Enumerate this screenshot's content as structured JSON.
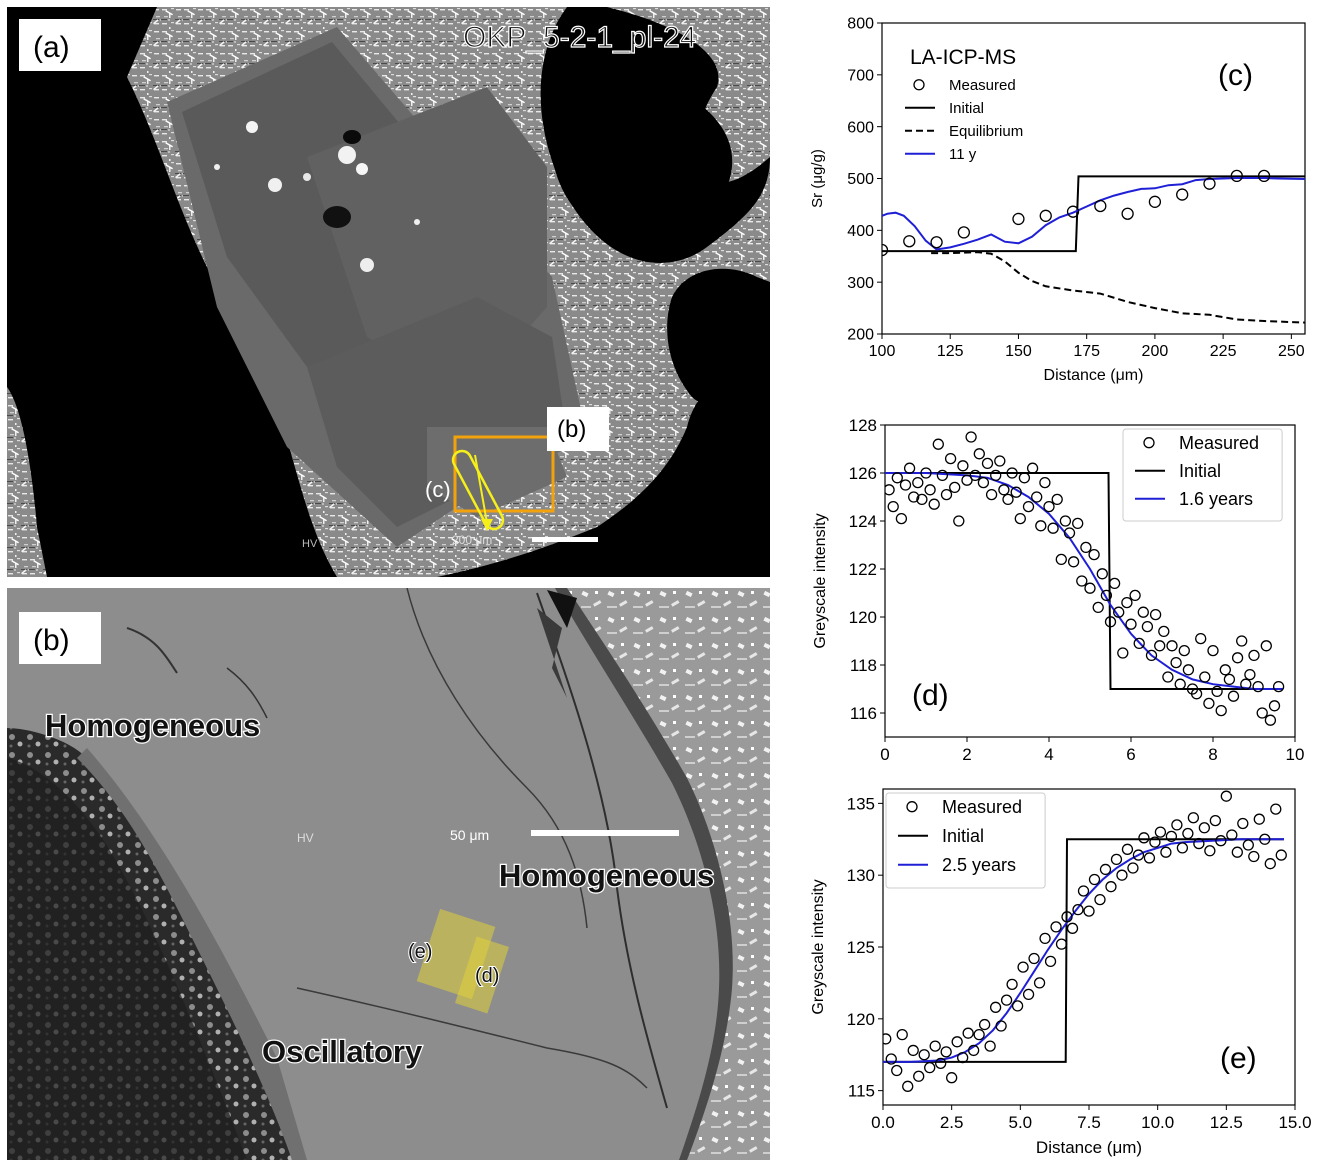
{
  "panel_a": {
    "label": "(a)",
    "sample_id": "OKP_5-2-1_pl-24",
    "box_label": "(b)",
    "profile_label": "(c)",
    "scalebar_text": "200 μm",
    "corner_text": "HV",
    "box_color": "#f2a20c",
    "profile_color": "#f5ef1a"
  },
  "panel_b": {
    "label": "(b)",
    "zone_labels": [
      "Homogeneous",
      "Homogeneous",
      "Oscillatory"
    ],
    "profile_labels": [
      "(e)",
      "(d)"
    ],
    "scalebar_text": "50 μm",
    "corner_text": "HV",
    "highlight_color": "#e0d23a"
  },
  "chart_data": [
    {
      "id": "c",
      "type": "line",
      "panel_label": "(c)",
      "inset_title": "LA-ICP-MS",
      "xlabel": "Distance (μm)",
      "ylabel": "Sr (μg/g)",
      "xlim": [
        100,
        255
      ],
      "ylim": [
        200,
        800
      ],
      "xticks": [
        100,
        125,
        150,
        175,
        200,
        225,
        250
      ],
      "yticks": [
        200,
        300,
        400,
        500,
        600,
        700,
        800
      ],
      "legend_position": "upper-left",
      "series": [
        {
          "name": "Measured",
          "kind": "scatter",
          "x": [
            100,
            110,
            120,
            130,
            150,
            160,
            170,
            180,
            190,
            200,
            210,
            220,
            230,
            240
          ],
          "y": [
            362,
            379,
            377,
            396,
            422,
            428,
            436,
            447,
            432,
            455,
            469,
            490,
            505,
            505
          ]
        },
        {
          "name": "Initial",
          "kind": "line",
          "color": "#000000",
          "dash": "solid",
          "x": [
            100,
            171,
            171,
            172,
            173,
            174,
            255
          ],
          "y": [
            360,
            360,
            360,
            504,
            504,
            504,
            504
          ]
        },
        {
          "name": "Equilibrium",
          "kind": "line",
          "color": "#000000",
          "dash": "dashed",
          "x": [
            118,
            125,
            135,
            140,
            145,
            150,
            155,
            160,
            170,
            180,
            190,
            200,
            210,
            220,
            230,
            240,
            255
          ],
          "y": [
            356,
            356,
            358,
            355,
            340,
            318,
            302,
            292,
            284,
            278,
            262,
            250,
            240,
            237,
            228,
            225,
            222
          ]
        },
        {
          "name": "11 y",
          "kind": "line",
          "color": "#1f1fd6",
          "dash": "solid",
          "x": [
            100,
            102,
            105,
            108,
            112,
            116,
            120,
            125,
            130,
            135,
            140,
            145,
            150,
            155,
            160,
            165,
            170,
            175,
            180,
            185,
            190,
            195,
            200,
            205,
            210,
            215,
            220,
            225,
            230,
            235,
            240,
            245,
            255
          ],
          "y": [
            428,
            432,
            434,
            428,
            408,
            380,
            363,
            367,
            374,
            382,
            392,
            378,
            375,
            388,
            410,
            425,
            434,
            446,
            458,
            467,
            474,
            480,
            481,
            487,
            489,
            497,
            499,
            500,
            501,
            501,
            501,
            500,
            499
          ]
        }
      ]
    },
    {
      "id": "d",
      "type": "line",
      "panel_label": "(d)",
      "xlabel": "",
      "ylabel": "Greyscale intensity",
      "xlim": [
        0,
        10
      ],
      "ylim": [
        115,
        128
      ],
      "xticks": [
        0,
        2,
        4,
        6,
        8,
        10
      ],
      "yticks": [
        116,
        118,
        120,
        122,
        124,
        126,
        128
      ],
      "legend_position": "upper-right",
      "series": [
        {
          "name": "Measured",
          "kind": "scatter",
          "x": [
            0.1,
            0.2,
            0.3,
            0.4,
            0.5,
            0.6,
            0.7,
            0.8,
            0.9,
            1.0,
            1.1,
            1.2,
            1.3,
            1.4,
            1.5,
            1.6,
            1.7,
            1.8,
            1.9,
            2.0,
            2.1,
            2.2,
            2.3,
            2.4,
            2.5,
            2.6,
            2.7,
            2.8,
            2.9,
            3.0,
            3.1,
            3.2,
            3.3,
            3.4,
            3.5,
            3.6,
            3.7,
            3.8,
            3.9,
            4.0,
            4.1,
            4.2,
            4.3,
            4.4,
            4.5,
            4.6,
            4.7,
            4.8,
            4.9,
            5.0,
            5.1,
            5.2,
            5.3,
            5.4,
            5.5,
            5.6,
            5.7,
            5.8,
            5.9,
            6.0,
            6.1,
            6.2,
            6.3,
            6.4,
            6.5,
            6.6,
            6.7,
            6.8,
            6.9,
            7.0,
            7.1,
            7.2,
            7.3,
            7.4,
            7.5,
            7.6,
            7.7,
            7.8,
            7.9,
            8.0,
            8.1,
            8.2,
            8.3,
            8.4,
            8.5,
            8.6,
            8.7,
            8.8,
            8.9,
            9.0,
            9.1,
            9.2,
            9.3,
            9.4,
            9.5,
            9.6
          ],
          "y": [
            125.3,
            124.6,
            125.8,
            124.1,
            125.5,
            126.2,
            125.0,
            125.6,
            124.9,
            126.0,
            125.3,
            124.7,
            127.2,
            125.9,
            125.1,
            126.6,
            125.4,
            124.0,
            126.3,
            125.7,
            127.5,
            125.9,
            126.8,
            125.6,
            126.4,
            125.1,
            125.9,
            126.5,
            125.3,
            124.9,
            126.0,
            125.2,
            124.1,
            125.8,
            124.6,
            126.2,
            125.0,
            123.8,
            125.6,
            124.6,
            123.7,
            124.9,
            122.4,
            124.0,
            123.5,
            122.3,
            123.9,
            121.5,
            122.9,
            121.2,
            122.6,
            120.4,
            121.8,
            120.9,
            119.8,
            121.4,
            120.2,
            118.5,
            120.6,
            119.7,
            120.9,
            118.9,
            120.2,
            119.6,
            118.4,
            120.1,
            118.8,
            119.4,
            117.5,
            118.8,
            118.1,
            117.2,
            118.6,
            117.8,
            117.0,
            116.8,
            119.1,
            117.5,
            116.4,
            118.6,
            116.9,
            116.1,
            117.8,
            117.4,
            116.7,
            118.3,
            119.0,
            117.2,
            117.6,
            118.4,
            117.1,
            116.0,
            118.8,
            115.7,
            116.3,
            117.1
          ]
        },
        {
          "name": "Initial",
          "kind": "line",
          "color": "#000000",
          "dash": "solid",
          "x": [
            0,
            5.45,
            5.45,
            5.5,
            9.7
          ],
          "y": [
            126,
            126,
            126,
            117,
            117
          ]
        },
        {
          "name": "1.6 years",
          "kind": "line",
          "color": "#1f1fd6",
          "dash": "solid",
          "x": [
            0,
            1,
            2,
            2.5,
            3,
            3.5,
            4,
            4.5,
            5,
            5.5,
            6,
            6.5,
            7,
            7.5,
            8,
            8.5,
            9,
            9.7
          ],
          "y": [
            126.0,
            126.0,
            125.9,
            125.8,
            125.5,
            125.0,
            124.3,
            123.3,
            122.0,
            120.5,
            119.3,
            118.4,
            117.8,
            117.4,
            117.2,
            117.1,
            117.0,
            117.0
          ]
        }
      ]
    },
    {
      "id": "e",
      "type": "line",
      "panel_label": "(e)",
      "xlabel": "Distance (μm)",
      "ylabel": "Greyscale intensity",
      "xlim": [
        0,
        15
      ],
      "ylim": [
        114,
        136
      ],
      "xticks": [
        0.0,
        2.5,
        5.0,
        7.5,
        10.0,
        12.5,
        15.0
      ],
      "yticks": [
        115,
        120,
        125,
        130,
        135
      ],
      "legend_position": "upper-left",
      "series": [
        {
          "name": "Measured",
          "kind": "scatter",
          "x": [
            0.1,
            0.3,
            0.5,
            0.7,
            0.9,
            1.1,
            1.3,
            1.5,
            1.7,
            1.9,
            2.1,
            2.3,
            2.5,
            2.7,
            2.9,
            3.1,
            3.3,
            3.5,
            3.7,
            3.9,
            4.1,
            4.3,
            4.5,
            4.7,
            4.9,
            5.1,
            5.3,
            5.5,
            5.7,
            5.9,
            6.1,
            6.3,
            6.5,
            6.7,
            6.9,
            7.1,
            7.3,
            7.5,
            7.7,
            7.9,
            8.1,
            8.3,
            8.5,
            8.7,
            8.9,
            9.1,
            9.3,
            9.5,
            9.7,
            9.9,
            10.1,
            10.3,
            10.5,
            10.7,
            10.9,
            11.1,
            11.3,
            11.5,
            11.7,
            11.9,
            12.1,
            12.3,
            12.5,
            12.7,
            12.9,
            13.1,
            13.3,
            13.5,
            13.7,
            13.9,
            14.1,
            14.3,
            14.5
          ],
          "y": [
            118.6,
            117.2,
            116.4,
            118.9,
            115.3,
            117.8,
            116.0,
            117.5,
            116.6,
            118.1,
            116.9,
            117.7,
            115.9,
            118.4,
            117.3,
            119.0,
            117.8,
            118.9,
            119.6,
            118.1,
            120.8,
            119.5,
            121.3,
            122.4,
            120.9,
            123.6,
            121.7,
            124.2,
            122.5,
            125.6,
            124.0,
            126.4,
            125.2,
            127.1,
            126.3,
            127.6,
            128.9,
            127.5,
            129.7,
            128.3,
            130.4,
            129.2,
            131.1,
            130.0,
            131.8,
            130.5,
            131.4,
            132.6,
            131.2,
            132.3,
            133.0,
            131.6,
            132.7,
            133.5,
            131.9,
            132.9,
            134.0,
            132.2,
            133.3,
            131.7,
            133.8,
            132.4,
            135.5,
            132.8,
            131.6,
            133.6,
            132.1,
            131.3,
            133.9,
            132.5,
            130.8,
            134.6,
            131.4
          ]
        },
        {
          "name": "Initial",
          "kind": "line",
          "color": "#000000",
          "dash": "solid",
          "x": [
            0,
            6.65,
            6.65,
            6.7,
            14.6
          ],
          "y": [
            117,
            117,
            117,
            132.5,
            132.5
          ]
        },
        {
          "name": "2.5 years",
          "kind": "line",
          "color": "#1f1fd6",
          "dash": "solid",
          "x": [
            0,
            1,
            2,
            2.5,
            3,
            3.5,
            4,
            4.5,
            5,
            5.5,
            6,
            6.5,
            7,
            7.5,
            8,
            8.5,
            9,
            9.5,
            10,
            10.5,
            11,
            12,
            13,
            14.6
          ],
          "y": [
            117.0,
            117.0,
            117.1,
            117.3,
            117.7,
            118.3,
            119.2,
            120.4,
            121.8,
            123.3,
            124.8,
            126.2,
            127.5,
            128.7,
            129.7,
            130.5,
            131.1,
            131.6,
            131.9,
            132.2,
            132.3,
            132.4,
            132.5,
            132.5
          ]
        }
      ]
    }
  ]
}
